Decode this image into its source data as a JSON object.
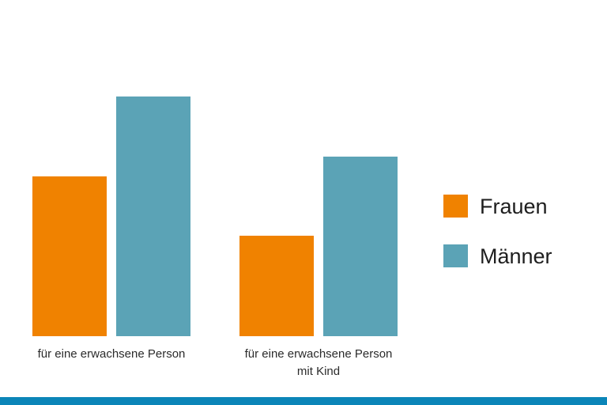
{
  "chart_data": {
    "type": "bar",
    "categories": [
      "für eine erwachsene Person",
      "für eine erwachsene Person mit Kind"
    ],
    "category_label_lines": [
      [
        "für eine erwachsene Person"
      ],
      [
        "für eine erwachsene Person",
        "mit Kind"
      ]
    ],
    "series": [
      {
        "name": "Frauen",
        "values": [
          202,
          127
        ]
      },
      {
        "name": "Männer",
        "values": [
          303,
          227
        ]
      }
    ],
    "ylim": [
      0,
      340
    ],
    "title": "",
    "xlabel": "",
    "ylabel": "",
    "grid": false,
    "legend_position": "right"
  },
  "colors": {
    "Frauen": "#f08200",
    "Männer": "#5ba3b6",
    "bottom_bar": "#0b85b8"
  }
}
